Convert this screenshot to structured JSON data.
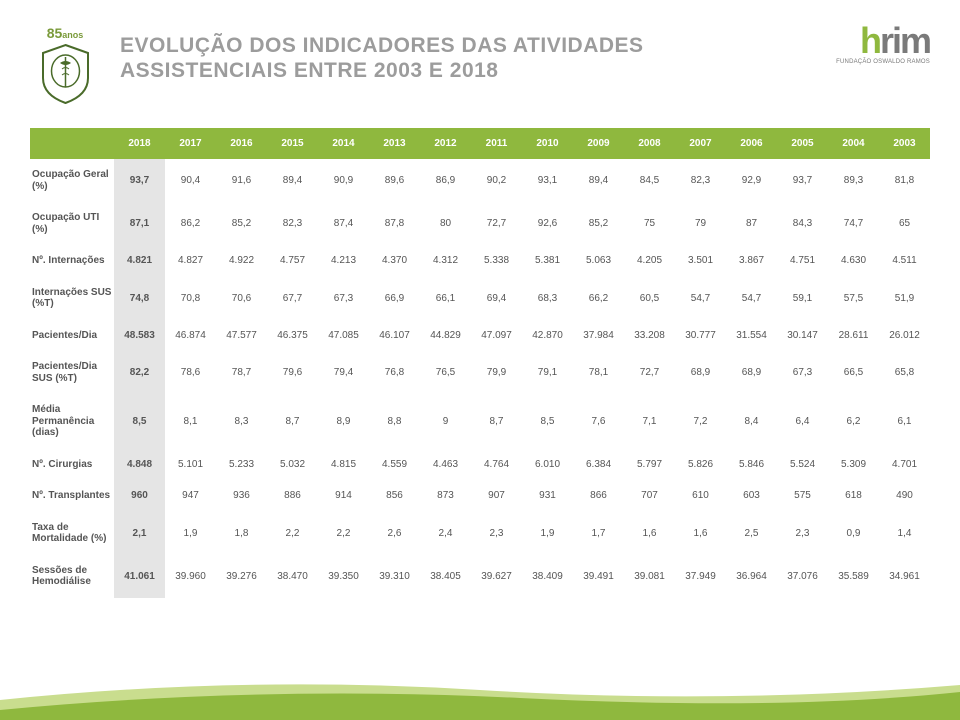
{
  "header": {
    "title_line1": "EVOLUÇÃO DOS INDICADORES DAS ATIVIDADES",
    "title_line2": "ASSISTENCIAIS ENTRE 2003 E 2018",
    "logo_left_text": "85anos",
    "logo_right_main": "hrim",
    "logo_right_sub": "FUNDAÇÃO OSWALDO RAMOS"
  },
  "colors": {
    "header_bg": "#8fb83e",
    "header_text": "#ffffff",
    "title_color": "#9c9c9c",
    "cell_text": "#555555",
    "highlight_bg": "#e5e5e5"
  },
  "table": {
    "years": [
      "2018",
      "2017",
      "2016",
      "2015",
      "2014",
      "2013",
      "2012",
      "2011",
      "2010",
      "2009",
      "2008",
      "2007",
      "2006",
      "2005",
      "2004",
      "2003"
    ],
    "rows": [
      {
        "label": "Ocupação Geral (%)",
        "values": [
          "93,7",
          "90,4",
          "91,6",
          "89,4",
          "90,9",
          "89,6",
          "86,9",
          "90,2",
          "93,1",
          "89,4",
          "84,5",
          "82,3",
          "92,9",
          "93,7",
          "89,3",
          "81,8"
        ]
      },
      {
        "label": "Ocupação UTI (%)",
        "values": [
          "87,1",
          "86,2",
          "85,2",
          "82,3",
          "87,4",
          "87,8",
          "80",
          "72,7",
          "92,6",
          "85,2",
          "75",
          "79",
          "87",
          "84,3",
          "74,7",
          "65"
        ]
      },
      {
        "label": "Nº. Internações",
        "values": [
          "4.821",
          "4.827",
          "4.922",
          "4.757",
          "4.213",
          "4.370",
          "4.312",
          "5.338",
          "5.381",
          "5.063",
          "4.205",
          "3.501",
          "3.867",
          "4.751",
          "4.630",
          "4.511"
        ]
      },
      {
        "label": "Internações SUS (%T)",
        "values": [
          "74,8",
          "70,8",
          "70,6",
          "67,7",
          "67,3",
          "66,9",
          "66,1",
          "69,4",
          "68,3",
          "66,2",
          "60,5",
          "54,7",
          "54,7",
          "59,1",
          "57,5",
          "51,9"
        ]
      },
      {
        "label": "Pacientes/Dia",
        "values": [
          "48.583",
          "46.874",
          "47.577",
          "46.375",
          "47.085",
          "46.107",
          "44.829",
          "47.097",
          "42.870",
          "37.984",
          "33.208",
          "30.777",
          "31.554",
          "30.147",
          "28.611",
          "26.012"
        ]
      },
      {
        "label": "Pacientes/Dia SUS (%T)",
        "values": [
          "82,2",
          "78,6",
          "78,7",
          "79,6",
          "79,4",
          "76,8",
          "76,5",
          "79,9",
          "79,1",
          "78,1",
          "72,7",
          "68,9",
          "68,9",
          "67,3",
          "66,5",
          "65,8"
        ]
      },
      {
        "label": "Média Permanência (dias)",
        "values": [
          "8,5",
          "8,1",
          "8,3",
          "8,7",
          "8,9",
          "8,8",
          "9",
          "8,7",
          "8,5",
          "7,6",
          "7,1",
          "7,2",
          "8,4",
          "6,4",
          "6,2",
          "6,1"
        ]
      },
      {
        "label": "Nº. Cirurgias",
        "values": [
          "4.848",
          "5.101",
          "5.233",
          "5.032",
          "4.815",
          "4.559",
          "4.463",
          "4.764",
          "6.010",
          "6.384",
          "5.797",
          "5.826",
          "5.846",
          "5.524",
          "5.309",
          "4.701"
        ]
      },
      {
        "label": "Nº. Transplantes",
        "values": [
          "960",
          "947",
          "936",
          "886",
          "914",
          "856",
          "873",
          "907",
          "931",
          "866",
          "707",
          "610",
          "603",
          "575",
          "618",
          "490"
        ]
      },
      {
        "label": "Taxa de Mortalidade (%)",
        "values": [
          "2,1",
          "1,9",
          "1,8",
          "2,2",
          "2,2",
          "2,6",
          "2,4",
          "2,3",
          "1,9",
          "1,7",
          "1,6",
          "1,6",
          "2,5",
          "2,3",
          "0,9",
          "1,4"
        ]
      },
      {
        "label": "Sessões de Hemodiálise",
        "values": [
          "41.061",
          "39.960",
          "39.276",
          "38.470",
          "39.350",
          "39.310",
          "38.405",
          "39.627",
          "38.409",
          "39.491",
          "39.081",
          "37.949",
          "36.964",
          "37.076",
          "35.589",
          "34.961"
        ]
      }
    ]
  }
}
